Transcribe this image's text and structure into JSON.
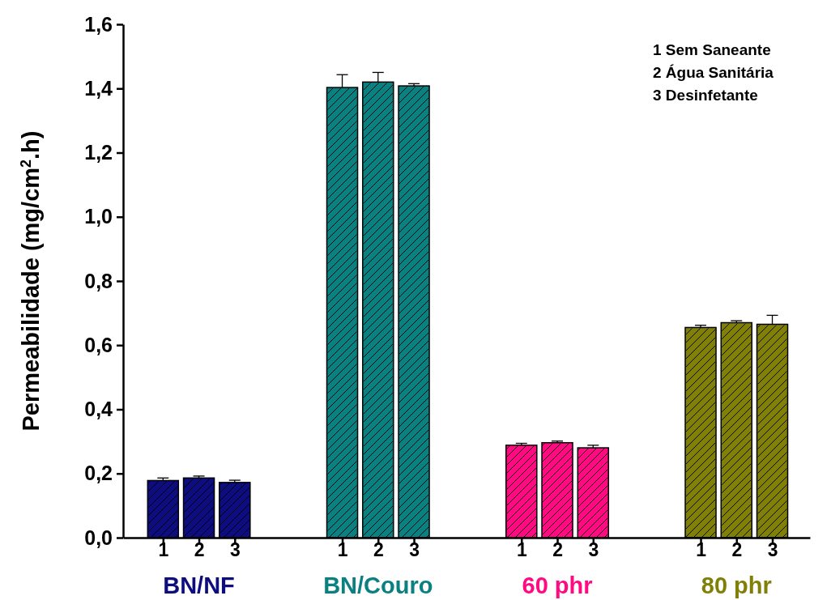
{
  "chart_data": {
    "type": "bar",
    "ylabel": "Permeabilidade (mg/cm$^{2}$.h)",
    "categories": [
      "1",
      "2",
      "3",
      null,
      null,
      "1",
      "2",
      "3",
      null,
      null,
      "1",
      "2",
      "3",
      null,
      null,
      "1",
      "2",
      "3"
    ],
    "values": [
      0.178,
      0.186,
      0.172,
      null,
      null,
      1.403,
      1.42,
      1.408,
      null,
      null,
      0.288,
      0.296,
      0.28,
      null,
      null,
      0.655,
      0.67,
      0.665
    ],
    "errors": [
      [
        0.178,
        0.186
      ],
      [
        0.186,
        0.192
      ],
      [
        0.172,
        0.179
      ],
      null,
      null,
      [
        1.403,
        1.443
      ],
      [
        1.42,
        1.45
      ],
      [
        1.408,
        1.415
      ],
      null,
      null,
      [
        0.288,
        0.294
      ],
      [
        0.296,
        0.301
      ],
      [
        0.28,
        0.288
      ],
      null,
      null,
      [
        0.655,
        0.662
      ],
      [
        0.67,
        0.676
      ],
      [
        0.665,
        0.693
      ]
    ],
    "colors": [
      "#0d0d80",
      "#0d0d80",
      "#0d0d80",
      null,
      null,
      "#0a8080",
      "#0a8080",
      "#0a8080",
      null,
      null,
      "#ff0a80",
      "#ff0a80",
      "#ff0a80",
      null,
      null,
      "#808008",
      "#808008",
      "#808008"
    ],
    "ylim": [
      0,
      1.6
    ],
    "yticks": [
      {
        "value": 0,
        "label": "0,0"
      },
      {
        "value": 0.2,
        "label": "0,2"
      },
      {
        "value": 0.4,
        "label": "0,4"
      },
      {
        "value": 0.6,
        "label": "0,6"
      },
      {
        "value": 0.8,
        "label": "0,8"
      },
      {
        "value": 1.0,
        "label": "1,0"
      },
      {
        "value": 1.2,
        "label": "1,2"
      },
      {
        "value": 1.4,
        "label": "1,4"
      },
      {
        "value": 1.6,
        "label": "1,6"
      }
    ],
    "annotations": [
      "BN/NF",
      "BN/Couro",
      "60 phr",
      "80 phr",
      "1 Sem Saneante",
      "2 Água Sanitária",
      "3 Desinfetante"
    ]
  }
}
